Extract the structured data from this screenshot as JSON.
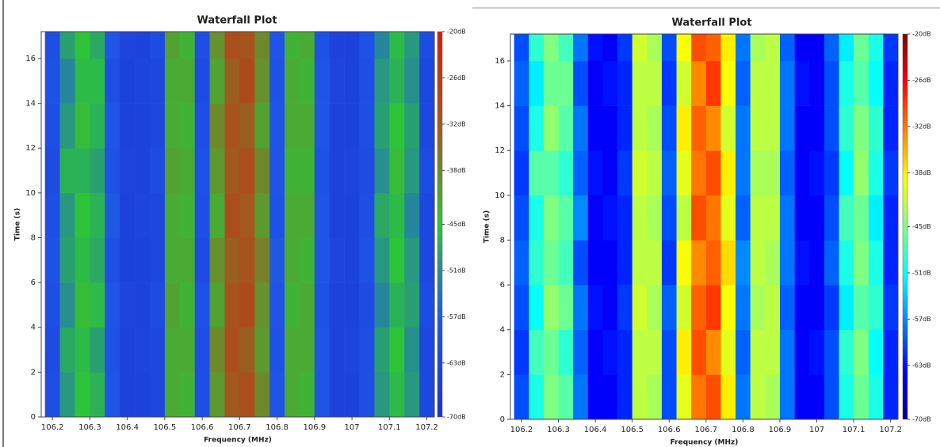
{
  "chart_data": [
    {
      "type": "heatmap",
      "title": "Waterfall Plot",
      "x_label": "Frequency (MHz)",
      "y_label": "Time (s)",
      "xlim": [
        106.17,
        107.22
      ],
      "xticks": [
        106.2,
        106.3,
        106.4,
        106.5,
        106.6,
        106.7,
        106.8,
        106.9,
        107,
        107.1,
        107.2
      ],
      "ylim": [
        0,
        17.2
      ],
      "yticks": [
        0,
        2,
        4,
        6,
        8,
        10,
        12,
        14,
        16
      ],
      "zlim": [
        -70,
        -20
      ],
      "zticks": [
        {
          "value": -20,
          "label": "-20dB"
        },
        {
          "value": -26,
          "label": "-26dB"
        },
        {
          "value": -32,
          "label": "-32dB"
        },
        {
          "value": -38,
          "label": "-38dB"
        },
        {
          "value": -45,
          "label": "-45dB"
        },
        {
          "value": -51,
          "label": "-51dB"
        },
        {
          "value": -57,
          "label": "-57dB"
        },
        {
          "value": -63,
          "label": "-63dB"
        },
        {
          "value": -70,
          "label": "-70dB"
        }
      ],
      "colormap": [
        "#1a30d0",
        "#1f55e8",
        "#2ec43a",
        "#a05a20",
        "#d02010"
      ],
      "x": [
        106.2,
        106.24,
        106.28,
        106.32,
        106.36,
        106.4,
        106.44,
        106.48,
        106.52,
        106.56,
        106.6,
        106.64,
        106.68,
        106.72,
        106.76,
        106.8,
        106.84,
        106.88,
        106.92,
        106.96,
        107,
        107.04,
        107.08,
        107.12,
        107.16,
        107.2
      ],
      "y": [
        1,
        3,
        5,
        7,
        9,
        11,
        13,
        15,
        17
      ],
      "z": [
        [
          -60,
          -50,
          -45,
          -47,
          -58,
          -64,
          -64,
          -62,
          -42,
          -43,
          -60,
          -40,
          -32,
          -30,
          -38,
          -58,
          -42,
          -43,
          -58,
          -64,
          -64,
          -60,
          -50,
          -46,
          -50,
          -62
        ],
        [
          -61,
          -48,
          -46,
          -49,
          -59,
          -64,
          -63,
          -62,
          -42,
          -42,
          -60,
          -38,
          -30,
          -33,
          -40,
          -59,
          -42,
          -42,
          -58,
          -64,
          -63,
          -60,
          -49,
          -45,
          -51,
          -62
        ],
        [
          -60,
          -51,
          -44,
          -46,
          -58,
          -63,
          -64,
          -61,
          -41,
          -43,
          -59,
          -41,
          -31,
          -29,
          -39,
          -58,
          -43,
          -42,
          -59,
          -64,
          -64,
          -61,
          -52,
          -47,
          -49,
          -61
        ],
        [
          -59,
          -49,
          -46,
          -48,
          -60,
          -64,
          -64,
          -62,
          -42,
          -42,
          -61,
          -39,
          -33,
          -31,
          -37,
          -57,
          -42,
          -43,
          -58,
          -63,
          -64,
          -59,
          -50,
          -45,
          -50,
          -62
        ],
        [
          -60,
          -50,
          -45,
          -47,
          -57,
          -64,
          -63,
          -62,
          -42,
          -43,
          -60,
          -42,
          -30,
          -32,
          -40,
          -59,
          -42,
          -42,
          -58,
          -64,
          -64,
          -60,
          -48,
          -46,
          -52,
          -62
        ],
        [
          -61,
          -47,
          -47,
          -49,
          -59,
          -63,
          -64,
          -61,
          -41,
          -42,
          -59,
          -40,
          -32,
          -30,
          -38,
          -58,
          -43,
          -43,
          -59,
          -64,
          -63,
          -61,
          -51,
          -44,
          -50,
          -61
        ],
        [
          -60,
          -50,
          -44,
          -47,
          -58,
          -64,
          -64,
          -62,
          -42,
          -43,
          -60,
          -38,
          -31,
          -33,
          -41,
          -58,
          -42,
          -42,
          -58,
          -64,
          -64,
          -60,
          -49,
          -45,
          -49,
          -62
        ],
        [
          -59,
          -52,
          -46,
          -46,
          -60,
          -64,
          -63,
          -62,
          -42,
          -42,
          -61,
          -41,
          -33,
          -29,
          -39,
          -59,
          -42,
          -43,
          -58,
          -63,
          -64,
          -60,
          -50,
          -47,
          -51,
          -62
        ],
        [
          -60,
          -49,
          -45,
          -48,
          -58,
          -63,
          -64,
          -61,
          -41,
          -43,
          -60,
          -39,
          -30,
          -31,
          -38,
          -58,
          -43,
          -42,
          -59,
          -64,
          -64,
          -59,
          -52,
          -46,
          -50,
          -61
        ]
      ]
    },
    {
      "type": "heatmap",
      "title": "Waterfall Plot",
      "x_label": "Frequency (MHz)",
      "y_label": "Time (s)",
      "xlim": [
        106.17,
        107.22
      ],
      "xticks": [
        106.2,
        106.3,
        106.4,
        106.5,
        106.6,
        106.7,
        106.8,
        106.9,
        107,
        107.1,
        107.2
      ],
      "ylim": [
        0,
        17.2
      ],
      "yticks": [
        0,
        2,
        4,
        6,
        8,
        10,
        12,
        14,
        16
      ],
      "zlim": [
        -70,
        -20
      ],
      "zticks": [
        {
          "value": -20,
          "label": "-20dB"
        },
        {
          "value": -26,
          "label": "-26dB"
        },
        {
          "value": -32,
          "label": "-32dB"
        },
        {
          "value": -38,
          "label": "-38dB"
        },
        {
          "value": -45,
          "label": "-45dB"
        },
        {
          "value": -51,
          "label": "-51dB"
        },
        {
          "value": -57,
          "label": "-57dB"
        },
        {
          "value": -63,
          "label": "-63dB"
        },
        {
          "value": -70,
          "label": "-70dB"
        }
      ],
      "colormap": [
        "#00008f",
        "#0000ff",
        "#0080ff",
        "#00ffff",
        "#80ff80",
        "#ffff00",
        "#ff8000",
        "#ff0000",
        "#800000"
      ],
      "x": [
        106.2,
        106.24,
        106.28,
        106.32,
        106.36,
        106.4,
        106.44,
        106.48,
        106.52,
        106.56,
        106.6,
        106.64,
        106.68,
        106.72,
        106.76,
        106.8,
        106.84,
        106.88,
        106.92,
        106.96,
        107,
        107.04,
        107.08,
        107.12,
        107.16,
        107.2
      ],
      "y": [
        1,
        3,
        5,
        7,
        9,
        11,
        13,
        15,
        17
      ],
      "z": [
        [
          -60,
          -50,
          -45,
          -47,
          -58,
          -64,
          -64,
          -62,
          -42,
          -43,
          -60,
          -40,
          -32,
          -30,
          -38,
          -58,
          -42,
          -43,
          -58,
          -64,
          -64,
          -60,
          -50,
          -46,
          -50,
          -62
        ],
        [
          -61,
          -48,
          -46,
          -49,
          -59,
          -64,
          -63,
          -62,
          -42,
          -42,
          -60,
          -38,
          -30,
          -33,
          -40,
          -59,
          -42,
          -42,
          -58,
          -64,
          -63,
          -60,
          -49,
          -45,
          -51,
          -62
        ],
        [
          -60,
          -51,
          -44,
          -46,
          -58,
          -63,
          -64,
          -61,
          -41,
          -43,
          -59,
          -41,
          -31,
          -29,
          -39,
          -58,
          -43,
          -42,
          -59,
          -64,
          -64,
          -61,
          -52,
          -47,
          -49,
          -61
        ],
        [
          -59,
          -49,
          -46,
          -48,
          -60,
          -64,
          -64,
          -62,
          -42,
          -42,
          -61,
          -39,
          -33,
          -31,
          -37,
          -57,
          -42,
          -43,
          -58,
          -63,
          -64,
          -59,
          -50,
          -45,
          -50,
          -62
        ],
        [
          -60,
          -50,
          -45,
          -47,
          -57,
          -64,
          -63,
          -62,
          -42,
          -43,
          -60,
          -42,
          -30,
          -32,
          -40,
          -59,
          -42,
          -42,
          -58,
          -64,
          -64,
          -60,
          -48,
          -46,
          -52,
          -62
        ],
        [
          -61,
          -47,
          -47,
          -49,
          -59,
          -63,
          -64,
          -61,
          -41,
          -42,
          -59,
          -40,
          -32,
          -30,
          -38,
          -58,
          -43,
          -43,
          -59,
          -64,
          -63,
          -61,
          -51,
          -44,
          -50,
          -61
        ],
        [
          -60,
          -50,
          -44,
          -47,
          -58,
          -64,
          -64,
          -62,
          -42,
          -43,
          -60,
          -38,
          -31,
          -33,
          -41,
          -58,
          -42,
          -42,
          -58,
          -64,
          -64,
          -60,
          -49,
          -45,
          -49,
          -62
        ],
        [
          -59,
          -52,
          -46,
          -46,
          -60,
          -64,
          -63,
          -62,
          -42,
          -42,
          -61,
          -41,
          -33,
          -29,
          -39,
          -59,
          -42,
          -42,
          -58,
          -63,
          -64,
          -60,
          -50,
          -47,
          -51,
          -62
        ],
        [
          -60,
          -49,
          -45,
          -48,
          -58,
          -63,
          -64,
          -61,
          -41,
          -43,
          -60,
          -39,
          -30,
          -31,
          -38,
          -58,
          -43,
          -42,
          -59,
          -64,
          -64,
          -59,
          -52,
          -46,
          -50,
          -61
        ]
      ]
    }
  ]
}
